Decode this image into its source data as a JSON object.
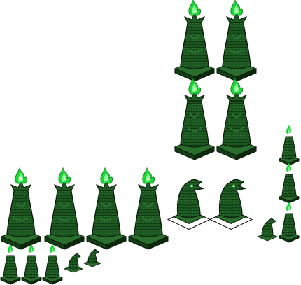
{
  "sheet": {
    "background": "#ffffff",
    "colors": {
      "stone_dark": "#0b2a0c",
      "stone_mid": "#1d5a22",
      "stone_light": "#2f7a34",
      "outline": "#061806",
      "base_top": "#2a6e2e",
      "base_side": "#123d15",
      "flame_core": "#e9ffe9",
      "flame_mid": "#7fff8a",
      "flame_outer": "#1fd23a",
      "tile_white": "#ffffff",
      "tile_edge": "#000000"
    },
    "icons": {
      "large_statue": "dragon-statue-flame-icon",
      "small_statue": "mini-dragon-statue-flame-icon",
      "dragon_head": "dragon-head-bust-icon",
      "figurine": "dragon-figurine-icon"
    }
  }
}
